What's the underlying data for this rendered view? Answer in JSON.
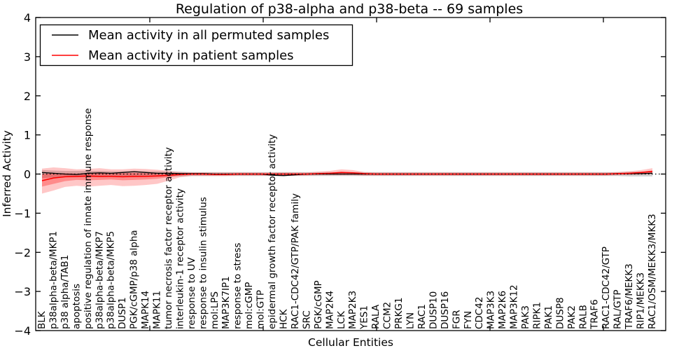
{
  "chart_data": {
    "type": "line",
    "title": "Regulation of p38-alpha and p38-beta -- 69 samples",
    "xlabel": "Cellular Entities",
    "ylabel": "Inferred Activity",
    "ylim": [
      -4,
      4
    ],
    "ytick_values": [
      4,
      3,
      2,
      1,
      0,
      -1,
      -2,
      -3,
      -4
    ],
    "ytick_labels": [
      "4",
      "3",
      "2",
      "1",
      "0",
      "−1",
      "−2",
      "−3",
      "−4"
    ],
    "grid": false,
    "legend_position": "upper left",
    "zero_line": {
      "value": 0,
      "style": "dotted",
      "color": "#000000"
    },
    "categories": [
      "BLK",
      "p38alpha-beta/MKP1",
      "p38 alpha/TAB1",
      "apoptosis",
      "positive regulation of innate immune response",
      "p38alpha-beta/MKP7",
      "p38alpha-beta/MKP5",
      "DUSP1",
      "PGK/cGMP/p38 alpha",
      "MAPK14",
      "MAPK11",
      "tumor necrosis factor receptor activity",
      "interleukin-1 receptor activity",
      "response to UV",
      "response to insulin stimulus",
      "mol:LPS",
      "MAP3K7IP1",
      "response to stress",
      "mol:cGMP",
      "mol:GTP",
      "epidermal growth factor receptor activity",
      "HCK",
      "RAC1-CDC42/GTP/PAK family",
      "SRC",
      "PGK/cGMP",
      "MAP2K4",
      "LCK",
      "MAP2K3",
      "YES1",
      "RALA",
      "CCM2",
      "PRKG1",
      "LYN",
      "RAC1",
      "DUSP10",
      "DUSP16",
      "FGR",
      "FYN",
      "CDC42",
      "MAP3K3",
      "MAP2K6",
      "MAP3K12",
      "PAK3",
      "RIPK1",
      "PAK1",
      "DUSP8",
      "PAK2",
      "RALB",
      "TRAF6",
      "RAC1-CDC42/GTP",
      "RAL/GTP",
      "TRAF6/MEKK3",
      "RIP1/MEKK3",
      "RAC1/OSM/MEKK3/MKK3"
    ],
    "series": [
      {
        "name": "Mean activity in all permuted samples",
        "color": "#000000",
        "band_color": "#999999",
        "values": [
          0.04,
          0.02,
          0.0,
          -0.01,
          0.02,
          0.03,
          0.02,
          0.04,
          0.06,
          0.04,
          0.02,
          0.02,
          0.01,
          0.01,
          0.01,
          0.0,
          0.0,
          0.0,
          0.0,
          0.0,
          -0.03,
          -0.04,
          -0.02,
          0.0,
          0.0,
          0.0,
          0.0,
          0.0,
          0.0,
          0.0,
          0.0,
          0.0,
          0.0,
          0.0,
          0.0,
          0.0,
          0.0,
          0.0,
          0.0,
          0.0,
          0.0,
          0.0,
          0.0,
          0.0,
          0.0,
          0.0,
          0.0,
          0.0,
          0.0,
          0.0,
          0.01,
          0.01,
          0.01,
          0.02
        ],
        "band_upper": [
          0.1,
          0.09,
          0.08,
          0.08,
          0.08,
          0.08,
          0.07,
          0.07,
          0.08,
          0.07,
          0.07,
          0.06,
          0.06,
          0.05,
          0.05,
          0.05,
          0.05,
          0.05,
          0.05,
          0.05,
          0.05,
          0.05,
          0.05,
          0.05,
          0.05,
          0.05,
          0.05,
          0.05,
          0.05,
          0.05,
          0.05,
          0.05,
          0.05,
          0.05,
          0.05,
          0.05,
          0.05,
          0.05,
          0.05,
          0.05,
          0.05,
          0.05,
          0.05,
          0.05,
          0.05,
          0.05,
          0.05,
          0.05,
          0.05,
          0.05,
          0.05,
          0.06,
          0.06,
          0.06
        ],
        "band_lower": [
          -0.1,
          -0.09,
          -0.08,
          -0.08,
          -0.08,
          -0.08,
          -0.07,
          -0.07,
          -0.08,
          -0.07,
          -0.07,
          -0.06,
          -0.06,
          -0.05,
          -0.05,
          -0.05,
          -0.05,
          -0.05,
          -0.05,
          -0.05,
          -0.05,
          -0.05,
          -0.05,
          -0.05,
          -0.05,
          -0.05,
          -0.05,
          -0.05,
          -0.05,
          -0.05,
          -0.05,
          -0.05,
          -0.05,
          -0.05,
          -0.05,
          -0.05,
          -0.05,
          -0.05,
          -0.05,
          -0.05,
          -0.05,
          -0.05,
          -0.05,
          -0.05,
          -0.05,
          -0.05,
          -0.05,
          -0.05,
          -0.05,
          -0.05,
          -0.05,
          -0.06,
          -0.06,
          -0.06
        ]
      },
      {
        "name": "Mean activity in patient samples",
        "color": "#ff0000",
        "band_color": "#ff0000",
        "values": [
          -0.17,
          -0.1,
          -0.07,
          -0.06,
          -0.05,
          -0.06,
          -0.06,
          -0.07,
          -0.06,
          -0.06,
          -0.05,
          -0.03,
          -0.01,
          0.0,
          0.0,
          -0.01,
          -0.01,
          0.0,
          0.0,
          0.0,
          0.0,
          0.0,
          0.0,
          0.0,
          0.01,
          0.02,
          0.04,
          0.03,
          0.01,
          0.0,
          0.0,
          0.0,
          0.0,
          0.0,
          0.0,
          0.0,
          0.0,
          0.0,
          0.0,
          0.0,
          0.0,
          0.0,
          0.0,
          0.0,
          0.0,
          0.0,
          0.0,
          0.0,
          0.0,
          0.0,
          0.01,
          0.02,
          0.04,
          0.07
        ],
        "band_outer_upper": [
          0.14,
          0.17,
          0.15,
          0.12,
          0.13,
          0.15,
          0.12,
          0.12,
          0.14,
          0.13,
          0.11,
          0.08,
          0.05,
          0.04,
          0.04,
          0.04,
          0.04,
          0.04,
          0.04,
          0.04,
          0.04,
          0.04,
          0.04,
          0.04,
          0.06,
          0.08,
          0.12,
          0.1,
          0.05,
          0.04,
          0.04,
          0.04,
          0.04,
          0.04,
          0.04,
          0.04,
          0.04,
          0.04,
          0.04,
          0.04,
          0.04,
          0.04,
          0.04,
          0.04,
          0.04,
          0.04,
          0.04,
          0.04,
          0.04,
          0.04,
          0.05,
          0.07,
          0.1,
          0.15
        ],
        "band_outer_lower": [
          -0.5,
          -0.42,
          -0.33,
          -0.3,
          -0.32,
          -0.3,
          -0.28,
          -0.31,
          -0.3,
          -0.28,
          -0.25,
          -0.17,
          -0.08,
          -0.05,
          -0.05,
          -0.05,
          -0.05,
          -0.04,
          -0.04,
          -0.04,
          -0.04,
          -0.04,
          -0.04,
          -0.04,
          -0.03,
          -0.03,
          -0.03,
          -0.03,
          -0.04,
          -0.04,
          -0.04,
          -0.04,
          -0.04,
          -0.04,
          -0.04,
          -0.04,
          -0.04,
          -0.04,
          -0.04,
          -0.04,
          -0.04,
          -0.04,
          -0.04,
          -0.04,
          -0.04,
          -0.04,
          -0.04,
          -0.04,
          -0.04,
          -0.04,
          -0.03,
          -0.02,
          -0.01,
          0.0
        ],
        "band_inner_upper": [
          0.0,
          0.02,
          0.02,
          0.01,
          0.02,
          0.03,
          0.02,
          0.02,
          0.03,
          0.02,
          0.02,
          0.02,
          0.02,
          0.01,
          0.01,
          0.01,
          0.01,
          0.01,
          0.01,
          0.01,
          0.01,
          0.01,
          0.01,
          0.01,
          0.02,
          0.03,
          0.06,
          0.04,
          0.02,
          0.01,
          0.01,
          0.01,
          0.01,
          0.01,
          0.01,
          0.01,
          0.01,
          0.01,
          0.01,
          0.01,
          0.01,
          0.01,
          0.01,
          0.01,
          0.01,
          0.01,
          0.01,
          0.01,
          0.01,
          0.01,
          0.02,
          0.03,
          0.05,
          0.09
        ],
        "band_inner_lower": [
          -0.32,
          -0.25,
          -0.18,
          -0.15,
          -0.16,
          -0.15,
          -0.14,
          -0.16,
          -0.15,
          -0.14,
          -0.12,
          -0.08,
          -0.04,
          -0.02,
          -0.02,
          -0.02,
          -0.02,
          -0.02,
          -0.02,
          -0.02,
          -0.02,
          -0.02,
          -0.02,
          -0.02,
          -0.01,
          -0.01,
          -0.01,
          -0.01,
          -0.02,
          -0.02,
          -0.02,
          -0.02,
          -0.02,
          -0.02,
          -0.02,
          -0.02,
          -0.02,
          -0.02,
          -0.02,
          -0.02,
          -0.02,
          -0.02,
          -0.02,
          -0.02,
          -0.02,
          -0.02,
          -0.02,
          -0.02,
          -0.02,
          -0.02,
          -0.01,
          -0.01,
          0.0,
          0.02
        ]
      }
    ]
  }
}
